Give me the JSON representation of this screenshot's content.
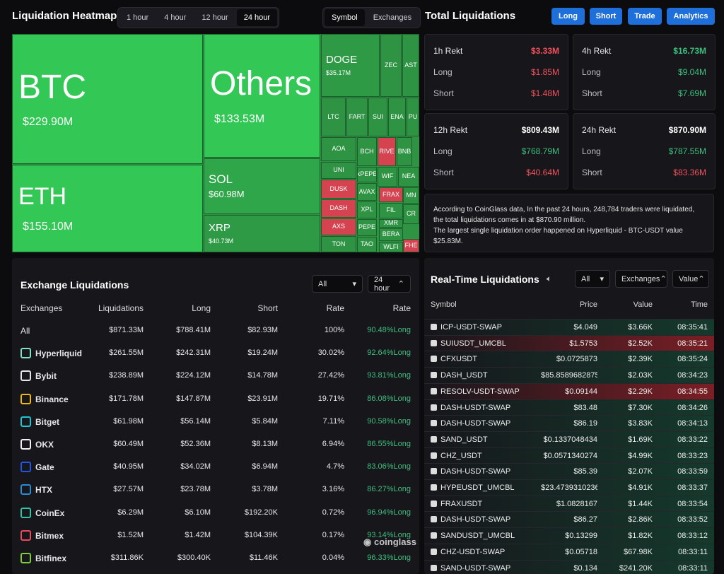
{
  "header": {
    "title": "Liquidation Heatmap",
    "tabs": [
      "1 hour",
      "4 hour",
      "12 hour",
      "24 hour"
    ],
    "active_tab": 3,
    "toggle": [
      "Symbol",
      "Exchanges"
    ],
    "active_toggle": 0
  },
  "heatmap": {
    "tiles": [
      {
        "label": "BTC",
        "value": "$229.90M",
        "color": "#33c856"
      },
      {
        "label": "Others",
        "value": "$133.53M",
        "color": "#33c856"
      },
      {
        "label": "ETH",
        "value": "$155.10M",
        "color": "#33c856"
      },
      {
        "label": "SOL",
        "value": "$60.98M",
        "color": "#2fa64a"
      },
      {
        "label": "XRP",
        "value": "$40.73M",
        "color": "#2f9a45"
      },
      {
        "label": "DOGE",
        "value": "$35.17M",
        "color": "#2f9a45"
      },
      {
        "label": "ZEC",
        "color": "#2e9343"
      },
      {
        "label": "AST",
        "color": "#2e9343"
      },
      {
        "label": "LTC",
        "color": "#2e9343"
      },
      {
        "label": "FART",
        "color": "#2e9343"
      },
      {
        "label": "SUI",
        "color": "#2e9343"
      },
      {
        "label": "ENA",
        "color": "#2e9343"
      },
      {
        "label": "PU",
        "color": "#2e9343"
      },
      {
        "label": "AOA",
        "color": "#2e9343"
      },
      {
        "label": "BCH",
        "color": "#2e9343"
      },
      {
        "label": "RIVE",
        "color": "#d4434f"
      },
      {
        "label": "BNB",
        "color": "#2e9343"
      },
      {
        "label": "UNI",
        "color": "#2e9343"
      },
      {
        "label": "kPEPE",
        "color": "#2e9343"
      },
      {
        "label": "WIF",
        "color": "#2e9343"
      },
      {
        "label": "NEA",
        "color": "#2e9343"
      },
      {
        "label": "DUSK",
        "color": "#d4434f"
      },
      {
        "label": "AVAX",
        "color": "#2e9343"
      },
      {
        "label": "FRAX",
        "color": "#d4434f"
      },
      {
        "label": "MN",
        "color": "#2e9343"
      },
      {
        "label": "DASH",
        "color": "#d4434f"
      },
      {
        "label": "XPL",
        "color": "#2e9343"
      },
      {
        "label": "FIL",
        "color": "#2e9343"
      },
      {
        "label": "CR",
        "color": "#2e9343"
      },
      {
        "label": "AXS",
        "color": "#d4434f"
      },
      {
        "label": "PEPE",
        "color": "#2e9343"
      },
      {
        "label": "XMR",
        "color": "#2e9343"
      },
      {
        "label": "TON",
        "color": "#2e9343"
      },
      {
        "label": "TAO",
        "color": "#2e9343"
      },
      {
        "label": "BERA",
        "color": "#2e9343"
      },
      {
        "label": "WLFI",
        "color": "#2e9343"
      },
      {
        "label": "FHE",
        "color": "#d4434f"
      }
    ]
  },
  "total": {
    "title": "Total Liquidations",
    "buttons": [
      "Long",
      "Short",
      "Trade",
      "Analytics"
    ],
    "cards": [
      {
        "title": "1h Rekt",
        "total": "$3.33M",
        "long_label": "Long",
        "long": "$1.85M",
        "short_label": "Short",
        "short": "$1.48M",
        "color": "#f0525e"
      },
      {
        "title": "4h Rekt",
        "total": "$16.73M",
        "long_label": "Long",
        "long": "$9.04M",
        "short_label": "Short",
        "short": "$7.69M",
        "color": "#3fbf7f"
      },
      {
        "title": "12h Rekt",
        "total": "$809.43M",
        "long_label": "Long",
        "long": "$768.79M",
        "short_label": "Short",
        "short": "$40.64M",
        "color": "#ffffff"
      },
      {
        "title": "24h Rekt",
        "total": "$870.90M",
        "long_label": "Long",
        "long": "$787.55M",
        "short_label": "Short",
        "short": "$83.36M",
        "color": "#ffffff"
      }
    ],
    "note": [
      "According to CoinGlass data, In the past 24 hours, 248,784 traders were liquidated, the total liquidations comes in at $870.90 million.",
      "The largest single liquidation order happened on Hyperliquid - BTC-USDT value $25.83M."
    ]
  },
  "exchange": {
    "title": "Exchange Liquidations",
    "filter": "All",
    "period": "24 hour",
    "columns": [
      "Exchanges",
      "Liquidations",
      "Long",
      "Short",
      "Rate",
      "Rate"
    ],
    "rows": [
      {
        "cells": [
          "All",
          "$871.33M",
          "$788.41M",
          "$82.93M",
          "100%",
          "90.48%Long"
        ]
      },
      {
        "cells": [
          "Hyperliquid",
          "$261.55M",
          "$242.31M",
          "$19.24M",
          "30.02%",
          "92.64%Long"
        ],
        "color": "#7fe3c6"
      },
      {
        "cells": [
          "Bybit",
          "$238.89M",
          "$224.12M",
          "$14.78M",
          "27.42%",
          "93.81%Long"
        ],
        "color": "#e6e6e6"
      },
      {
        "cells": [
          "Binance",
          "$171.78M",
          "$147.87M",
          "$23.91M",
          "19.71%",
          "86.08%Long"
        ],
        "color": "#f0b90b"
      },
      {
        "cells": [
          "Bitget",
          "$61.98M",
          "$56.14M",
          "$5.84M",
          "7.11%",
          "90.58%Long"
        ],
        "color": "#1fc7d4"
      },
      {
        "cells": [
          "OKX",
          "$60.49M",
          "$52.36M",
          "$8.13M",
          "6.94%",
          "86.55%Long"
        ],
        "color": "#f2f2f2"
      },
      {
        "cells": [
          "Gate",
          "$40.95M",
          "$34.02M",
          "$6.94M",
          "4.7%",
          "83.06%Long"
        ],
        "color": "#2354e6"
      },
      {
        "cells": [
          "HTX",
          "$27.57M",
          "$23.78M",
          "$3.78M",
          "3.16%",
          "86.27%Long"
        ],
        "color": "#2a8cd6"
      },
      {
        "cells": [
          "CoinEx",
          "$6.29M",
          "$6.10M",
          "$192.20K",
          "0.72%",
          "96.94%Long"
        ],
        "color": "#2ec4a5"
      },
      {
        "cells": [
          "Bitmex",
          "$1.52M",
          "$1.42M",
          "$104.39K",
          "0.17%",
          "93.14%Long"
        ],
        "color": "#e84a5f"
      },
      {
        "cells": [
          "Bitfinex",
          "$311.86K",
          "$300.40K",
          "$11.46K",
          "0.04%",
          "96.33%Long"
        ],
        "color": "#7ccf3a"
      }
    ]
  },
  "realtime": {
    "title": "Real-Time Liquidations",
    "filter": "All",
    "source": "Exchanges",
    "sort": "Value",
    "columns": [
      "Symbol",
      "Price",
      "Value",
      "Time"
    ],
    "rows": [
      {
        "cells": [
          "ICP-USDT-SWAP",
          "$4.049",
          "$3.66K",
          "08:35:41"
        ],
        "color": "#153a2c"
      },
      {
        "cells": [
          "SUIUSDT_UMCBL",
          "$1.5753",
          "$2.52K",
          "08:35:21"
        ],
        "color": "#7a1f25"
      },
      {
        "cells": [
          "CFXUSDT",
          "$0.0725873",
          "$2.39K",
          "08:35:24"
        ],
        "color": "#153a2c"
      },
      {
        "cells": [
          "DASH_USDT",
          "$85.8589682875",
          "$2.03K",
          "08:34:23"
        ],
        "color": "#153a2c"
      },
      {
        "cells": [
          "RESOLV-USDT-SWAP",
          "$0.09144",
          "$2.29K",
          "08:34:55"
        ],
        "color": "#7a1f25"
      },
      {
        "cells": [
          "DASH-USDT-SWAP",
          "$83.48",
          "$7.30K",
          "08:34:26"
        ],
        "color": "#153a2c"
      },
      {
        "cells": [
          "DASH-USDT-SWAP",
          "$86.19",
          "$3.83K",
          "08:34:13"
        ],
        "color": "#153a2c"
      },
      {
        "cells": [
          "SAND_USDT",
          "$0.1337048434",
          "$1.69K",
          "08:33:22"
        ],
        "color": "#153a2c"
      },
      {
        "cells": [
          "CHZ_USDT",
          "$0.0571340274",
          "$4.99K",
          "08:33:23"
        ],
        "color": "#153a2c"
      },
      {
        "cells": [
          "DASH-USDT-SWAP",
          "$85.39",
          "$2.07K",
          "08:33:59"
        ],
        "color": "#153a2c"
      },
      {
        "cells": [
          "HYPEUSDT_UMCBL",
          "$23.4739310236",
          "$4.91K",
          "08:33:37"
        ],
        "color": "#153a2c"
      },
      {
        "cells": [
          "FRAXUSDT",
          "$1.0828167",
          "$1.44K",
          "08:33:54"
        ],
        "color": "#153a2c"
      },
      {
        "cells": [
          "DASH-USDT-SWAP",
          "$86.27",
          "$2.86K",
          "08:33:52"
        ],
        "color": "#153a2c"
      },
      {
        "cells": [
          "SANDUSDT_UMCBL",
          "$0.13299",
          "$1.82K",
          "08:33:12"
        ],
        "color": "#153a2c"
      },
      {
        "cells": [
          "CHZ-USDT-SWAP",
          "$0.05718",
          "$67.98K",
          "08:33:11"
        ],
        "color": "#153a2c"
      },
      {
        "cells": [
          "SAND-USDT-SWAP",
          "$0.134",
          "$241.20K",
          "08:33:11"
        ],
        "color": "#153a2c"
      }
    ]
  },
  "watermark": "coinglass"
}
